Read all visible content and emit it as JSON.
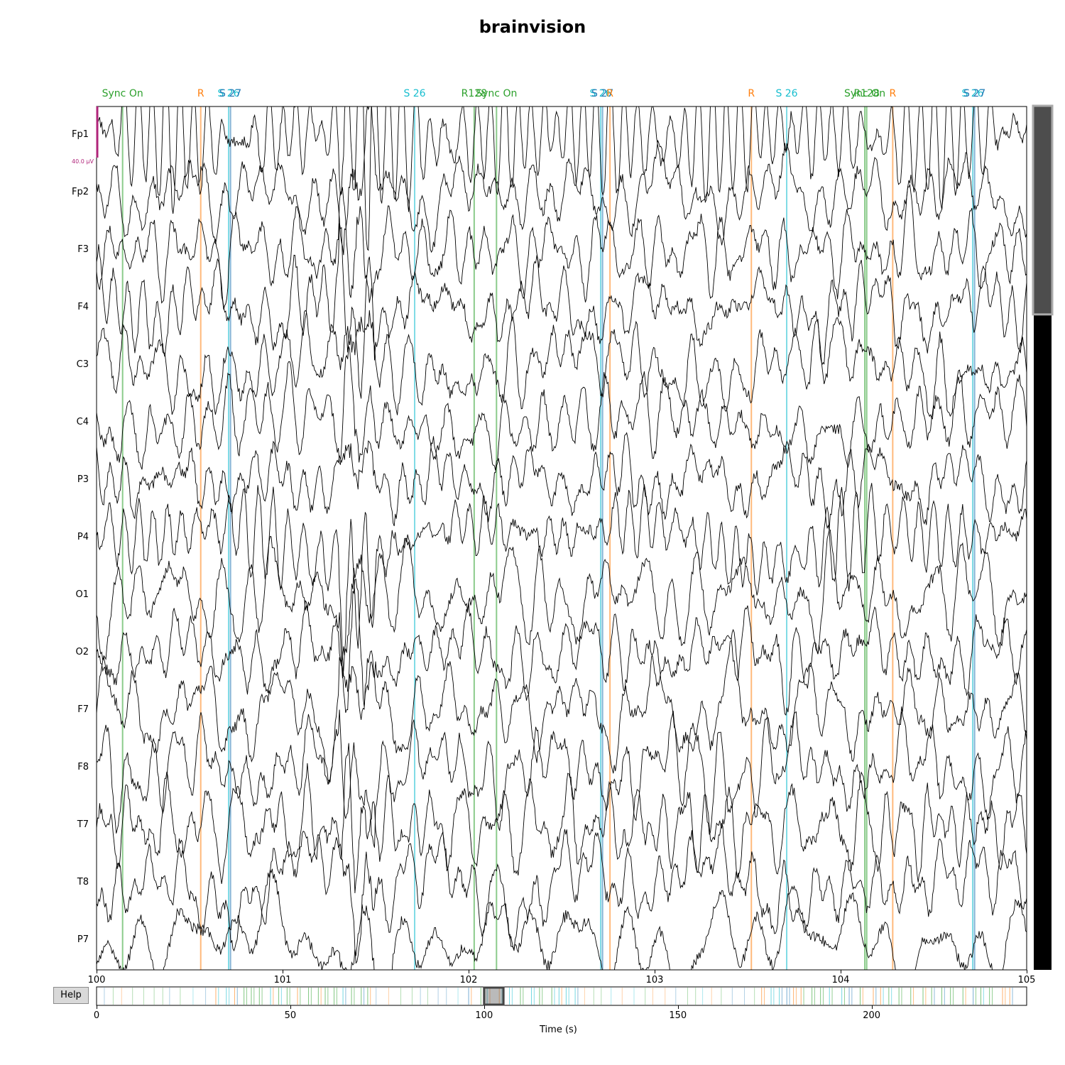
{
  "window": {
    "title": "brainvision"
  },
  "colors": {
    "trace": "#000000",
    "sync_on": "#2ca02c",
    "R": "#ff7f0e",
    "S 26": "#17becf",
    "S 27": "#1f77b4",
    "R128": "#2ca02c",
    "scale_bar": "#b0247a",
    "scrollbar_thumb": "#4d4d4d",
    "scrollbar_track": "#000000"
  },
  "channels": [
    "Fp1",
    "Fp2",
    "F3",
    "F4",
    "C3",
    "C4",
    "P3",
    "P4",
    "O1",
    "O2",
    "F7",
    "F8",
    "T7",
    "T8",
    "P7"
  ],
  "scale_label": "40.0 µV",
  "time_axis": {
    "ticks": [
      "100",
      "101",
      "102",
      "103",
      "104",
      "105"
    ],
    "range": [
      100,
      105
    ]
  },
  "annotations": [
    {
      "label": "Sync On",
      "time": 100.14,
      "type": "sync_on"
    },
    {
      "label": "R",
      "time": 100.56,
      "type": "R"
    },
    {
      "label": "S 26",
      "time": 100.71,
      "type": "S 26"
    },
    {
      "label": "S 27",
      "time": 100.72,
      "type": "S 27"
    },
    {
      "label": "S 26",
      "time": 101.71,
      "type": "S 26"
    },
    {
      "label": "R128",
      "time": 102.03,
      "type": "R128"
    },
    {
      "label": "Sync On",
      "time": 102.15,
      "type": "sync_on"
    },
    {
      "label": "S 26",
      "time": 102.71,
      "type": "S 26"
    },
    {
      "label": "S 27",
      "time": 102.72,
      "type": "S 27"
    },
    {
      "label": "R",
      "time": 102.76,
      "type": "R"
    },
    {
      "label": "R",
      "time": 103.52,
      "type": "R"
    },
    {
      "label": "S 26",
      "time": 103.71,
      "type": "S 26"
    },
    {
      "label": "Sync On",
      "time": 104.13,
      "type": "sync_on"
    },
    {
      "label": "R128",
      "time": 104.14,
      "type": "R128"
    },
    {
      "label": "R",
      "time": 104.28,
      "type": "R"
    },
    {
      "label": "S 26",
      "time": 104.71,
      "type": "S 26"
    },
    {
      "label": "S 27",
      "time": 104.72,
      "type": "S 27"
    }
  ],
  "overview": {
    "ticks": [
      "0",
      "50",
      "100",
      "150",
      "200"
    ],
    "range": [
      0,
      240
    ],
    "window": [
      100,
      105
    ],
    "xlabel": "Time (s)"
  },
  "help_button": {
    "label": "Help"
  },
  "vertical_scrollbar": {
    "visible_fraction": 0.24
  }
}
